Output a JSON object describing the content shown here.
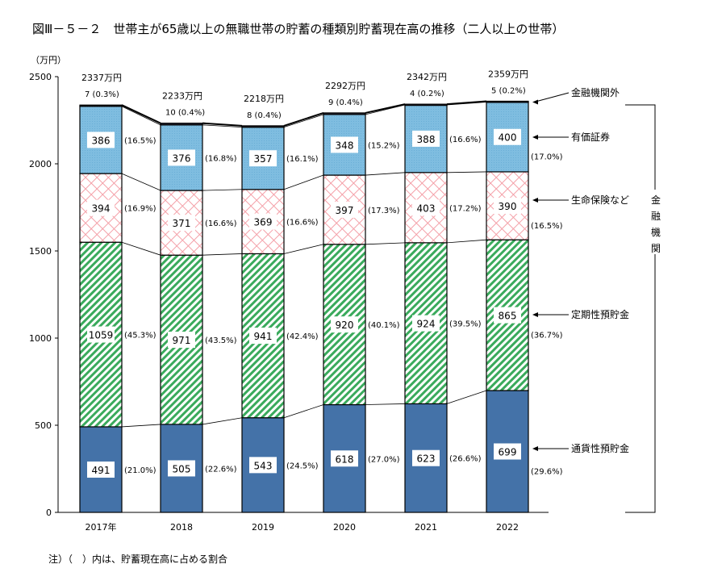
{
  "chart_data": {
    "type": "bar",
    "stacked": true,
    "title": "図Ⅲ－５－２　世帯主が65歳以上の無職世帯の貯蓄の種類別貯蓄現在高の推移（二人以上の世帯）",
    "yunit": "（万円）",
    "ylim": [
      0,
      2500
    ],
    "yticks": [
      0,
      500,
      1000,
      1500,
      2000,
      2500
    ],
    "categories": [
      "2017年",
      "2018",
      "2019",
      "2020",
      "2021",
      "2022"
    ],
    "totals": [
      "2337万円",
      "2233万円",
      "2218万円",
      "2292万円",
      "2342万円",
      "2359万円"
    ],
    "series": [
      {
        "name": "通貨性預貯金",
        "color": "#4472a8",
        "pattern": "solid",
        "values": [
          491,
          505,
          543,
          618,
          623,
          699
        ],
        "pct": [
          "(21.0%)",
          "(22.6%)",
          "(24.5%)",
          "(27.0%)",
          "(26.6%)",
          "(29.6%)"
        ]
      },
      {
        "name": "定期性預貯金",
        "color": "#3aaa5c",
        "pattern": "diagonal",
        "values": [
          1059,
          971,
          941,
          920,
          924,
          865
        ],
        "pct": [
          "(45.3%)",
          "(43.5%)",
          "(42.4%)",
          "(40.1%)",
          "(39.5%)",
          "(36.7%)"
        ]
      },
      {
        "name": "生命保険など",
        "color": "#f4a0a8",
        "pattern": "crosshatch",
        "values": [
          394,
          371,
          369,
          397,
          403,
          390
        ],
        "pct": [
          "(16.9%)",
          "(16.6%)",
          "(16.6%)",
          "(17.3%)",
          "(17.2%)",
          "(16.5%)"
        ]
      },
      {
        "name": "有価証券",
        "color": "#7fbde0",
        "pattern": "dots",
        "values": [
          386,
          376,
          357,
          348,
          388,
          400
        ],
        "pct": [
          "(16.5%)",
          "(16.8%)",
          "(16.1%)",
          "(15.2%)",
          "(16.6%)",
          "(17.0%)"
        ]
      },
      {
        "name": "金融機関外",
        "color": "#2a2a3a",
        "pattern": "solid",
        "values": [
          7,
          10,
          8,
          9,
          4,
          5
        ],
        "pct": [
          "7 (0.3%)",
          "10 (0.4%)",
          "8 (0.4%)",
          "9 (0.4%)",
          "4 (0.2%)",
          "5 (0.2%)"
        ]
      }
    ],
    "bracket_label": "金融機関",
    "grid": false
  },
  "note": "注）（　）内は、貯蓄現在高に占める割合"
}
